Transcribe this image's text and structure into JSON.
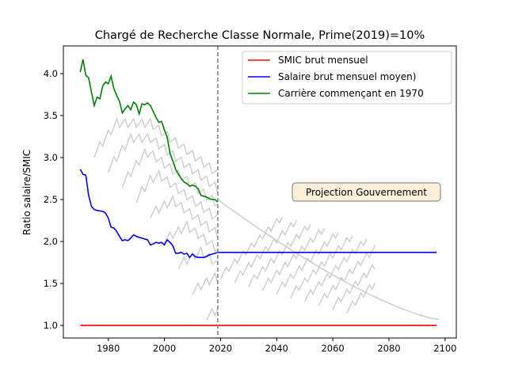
{
  "chart_data": {
    "type": "line",
    "title": "Chargé de Recherche Classe Normale, Prime(2019)=10%",
    "xlabel": "",
    "ylabel": "Ratio salaire/SMIC",
    "xlim": [
      1964,
      2104
    ],
    "ylim": [
      0.85,
      4.33
    ],
    "xticks": [
      1980,
      2000,
      2020,
      2040,
      2060,
      2080,
      2100
    ],
    "yticks": [
      1.0,
      1.5,
      2.0,
      2.5,
      3.0,
      3.5,
      4.0
    ],
    "xtick_labels": [
      "1980",
      "2000",
      "2020",
      "2040",
      "2060",
      "2080",
      "2100"
    ],
    "ytick_labels": [
      "1.0",
      "1.5",
      "2.0",
      "2.5",
      "3.0",
      "3.5",
      "4.0"
    ],
    "grid": false,
    "legend_position": "top-right",
    "vline": {
      "x": 2019,
      "color": "#808080",
      "style": "dashed"
    },
    "annotation": {
      "text": "Projection Gouvernement",
      "x": 2066,
      "y": 2.58
    },
    "series": [
      {
        "name": "SMIC brut mensuel",
        "color": "#ff0000",
        "x": [
          1970,
          2097
        ],
        "y": [
          1.0,
          1.0
        ]
      },
      {
        "name": "Salaire brut mensuel moyen)",
        "color": "#0000ff",
        "x": [
          1970,
          1971,
          1972,
          1973,
          1974,
          1975,
          1976,
          1977,
          1978,
          1979,
          1980,
          1981,
          1982,
          1983,
          1984,
          1985,
          1986,
          1987,
          1988,
          1989,
          1990,
          1991,
          1992,
          1993,
          1994,
          1995,
          1996,
          1997,
          1998,
          1999,
          2000,
          2001,
          2002,
          2003,
          2004,
          2005,
          2006,
          2007,
          2008,
          2009,
          2010,
          2011,
          2012,
          2013,
          2014,
          2015,
          2016,
          2017,
          2018,
          2019,
          2097
        ],
        "y": [
          2.86,
          2.8,
          2.79,
          2.55,
          2.42,
          2.38,
          2.37,
          2.365,
          2.36,
          2.34,
          2.28,
          2.17,
          2.16,
          2.12,
          2.06,
          2.01,
          2.02,
          2.01,
          2.04,
          2.08,
          2.06,
          2.05,
          2.04,
          2.03,
          2.02,
          1.96,
          1.97,
          1.99,
          1.98,
          1.99,
          1.96,
          2.02,
          1.99,
          1.95,
          1.86,
          1.86,
          1.87,
          1.85,
          1.86,
          1.81,
          1.85,
          1.82,
          1.81,
          1.81,
          1.81,
          1.82,
          1.84,
          1.85,
          1.86,
          1.87,
          1.87
        ]
      },
      {
        "name": "Carrière commençant en 1970",
        "color": "#008000",
        "x": [
          1970,
          1971,
          1972,
          1973,
          1974,
          1975,
          1976,
          1977,
          1978,
          1979,
          1980,
          1981,
          1982,
          1983,
          1984,
          1985,
          1986,
          1987,
          1988,
          1989,
          1990,
          1991,
          1992,
          1993,
          1994,
          1995,
          1996,
          1997,
          1998,
          1999,
          2000,
          2001,
          2002,
          2003,
          2004,
          2005,
          2006,
          2007,
          2008,
          2009,
          2010,
          2011,
          2012,
          2013,
          2014,
          2015,
          2016,
          2017,
          2018,
          2019
        ],
        "y": [
          4.02,
          4.17,
          3.98,
          3.95,
          3.78,
          3.62,
          3.72,
          3.7,
          3.85,
          3.9,
          3.88,
          3.97,
          3.82,
          3.74,
          3.67,
          3.53,
          3.58,
          3.62,
          3.57,
          3.66,
          3.63,
          3.52,
          3.64,
          3.63,
          3.65,
          3.62,
          3.55,
          3.48,
          3.42,
          3.43,
          3.33,
          3.24,
          3.05,
          2.96,
          2.86,
          2.8,
          2.75,
          2.71,
          2.69,
          2.66,
          2.67,
          2.66,
          2.63,
          2.55,
          2.54,
          2.53,
          2.51,
          2.5,
          2.5,
          2.47
        ]
      }
    ],
    "background_curves_color": "#cccccc",
    "background_curves_note_hidden": true
  }
}
